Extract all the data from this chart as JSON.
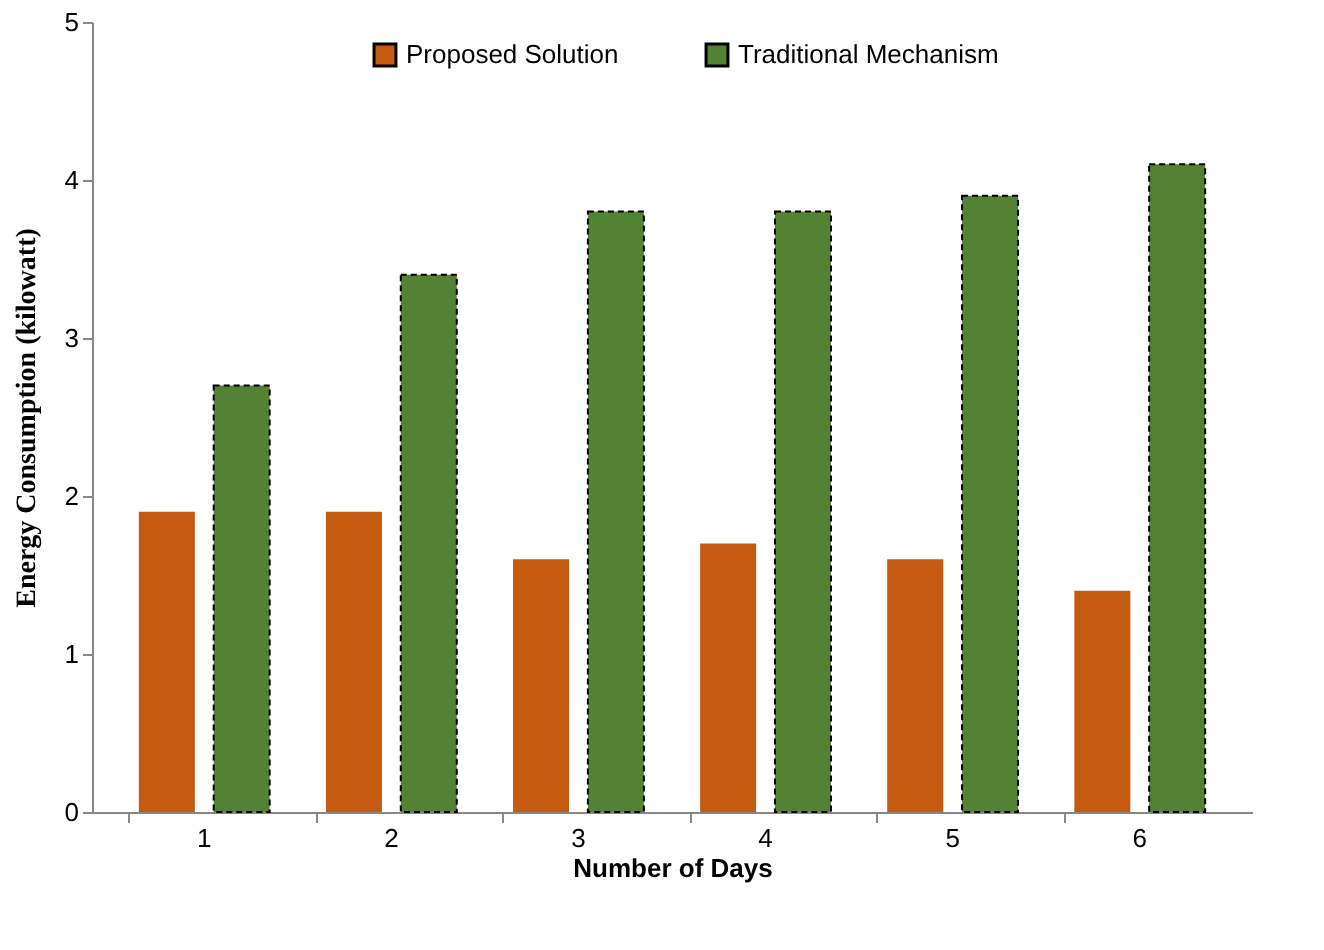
{
  "chart_data": {
    "type": "bar",
    "xlabel": "Number of Days",
    "ylabel": "Energy Consumption (kilowatt)",
    "categories": [
      "1",
      "2",
      "3",
      "4",
      "5",
      "6"
    ],
    "series": [
      {
        "name": "Proposed Solution",
        "color": "#c55a11",
        "values": [
          1.9,
          1.9,
          1.6,
          1.7,
          1.6,
          1.4
        ]
      },
      {
        "name": "Traditional Mechanism",
        "color": "#548235",
        "values": [
          2.7,
          3.4,
          3.8,
          3.8,
          3.9,
          4.1
        ]
      }
    ],
    "ylim": [
      0,
      5
    ],
    "yticks": [
      0,
      1,
      2,
      3,
      4,
      5
    ],
    "grid": false,
    "legend": "top"
  }
}
